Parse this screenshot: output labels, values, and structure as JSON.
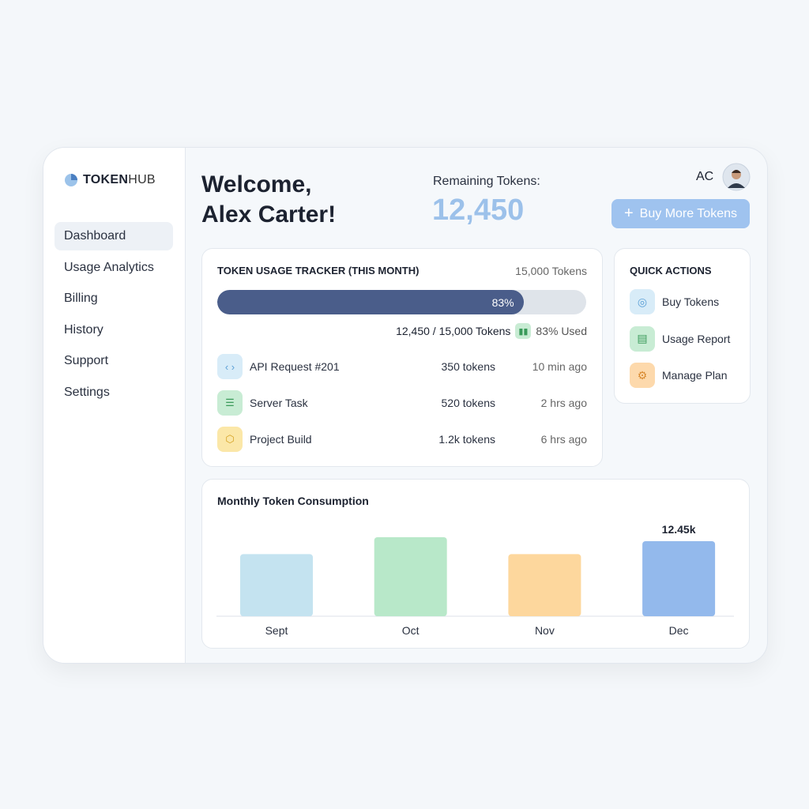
{
  "brand": {
    "bold": "TOKEN",
    "light": "HUB"
  },
  "nav": {
    "items": [
      "Dashboard",
      "Usage Analytics",
      "Billing",
      "History",
      "Support",
      "Settings"
    ],
    "active": 0
  },
  "header": {
    "welcome": [
      "Welcome,",
      "Alex Carter!"
    ],
    "remaining_label": "Remaining Tokens:",
    "remaining_value": "12,450",
    "user_initials": "AC",
    "buy_button": "Buy More Tokens"
  },
  "tracker": {
    "title": "TOKEN USAGE TRACKER (THIS MONTH)",
    "total": "15,000 Tokens",
    "progress": {
      "value": 83,
      "label": "83%"
    },
    "summary": "12,450 / 15,000 Tokens",
    "used": "83% Used",
    "items": [
      {
        "name": "API Request #201",
        "tokens": "350 tokens",
        "time": "10 min ago"
      },
      {
        "name": "Server Task",
        "tokens": "520 tokens",
        "time": "2 hrs ago"
      },
      {
        "name": "Project Build",
        "tokens": "1.2k tokens",
        "time": "6 hrs ago"
      }
    ]
  },
  "quick_actions": {
    "title": "QUICK ACTIONS",
    "items": [
      "Buy Tokens",
      "Usage Report",
      "Manage Plan"
    ]
  },
  "chart_data": {
    "type": "bar",
    "title": "Monthly Token Consumption",
    "categories": [
      "Sept",
      "Oct",
      "Nov",
      "Dec"
    ],
    "values": [
      10.3,
      13.1,
      10.3,
      12.45
    ],
    "value_labels": [
      null,
      null,
      null,
      "12.45k"
    ],
    "colors": [
      "#c4e3f0",
      "#b8e8c9",
      "#fdd79d",
      "#93b9ec"
    ]
  }
}
